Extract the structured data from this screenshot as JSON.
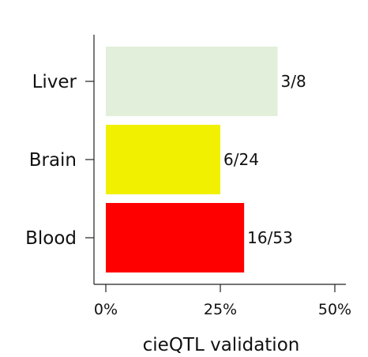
{
  "chart_data": {
    "type": "bar",
    "orientation": "horizontal",
    "title": "",
    "xlabel": "cieQTL validation",
    "ylabel": "",
    "xlim": [
      0,
      50
    ],
    "x_ticks": [
      0,
      25,
      50
    ],
    "x_tick_labels": [
      "0%",
      "25%",
      "50%"
    ],
    "grid": false,
    "legend": "none",
    "categories": [
      "Liver",
      "Brain",
      "Blood"
    ],
    "values": [
      37.5,
      25,
      30.2
    ],
    "data_labels": [
      "3/8",
      "6/24",
      "16/53"
    ],
    "colors": [
      "#e2efda",
      "#f0f000",
      "#ff0000"
    ]
  }
}
